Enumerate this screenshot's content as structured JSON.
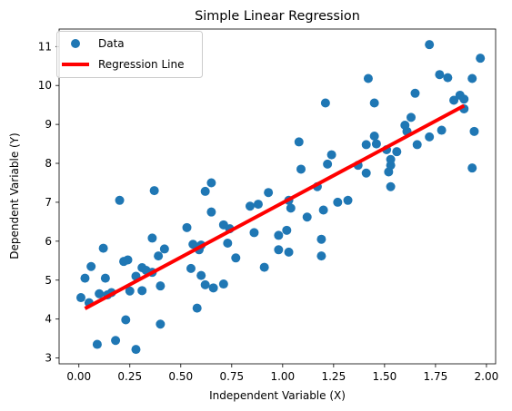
{
  "chart_data": {
    "type": "scatter",
    "title": "Simple Linear Regression",
    "xlabel": "Independent Variable (X)",
    "ylabel": "Dependent Variable (Y)",
    "xlim": [
      -0.097,
      2.045
    ],
    "ylim": [
      2.85,
      11.45
    ],
    "xticks": [
      "0.00",
      "0.25",
      "0.50",
      "0.75",
      "1.00",
      "1.25",
      "1.50",
      "1.75",
      "2.00"
    ],
    "yticks": [
      "3",
      "4",
      "5",
      "6",
      "7",
      "8",
      "9",
      "10",
      "11"
    ],
    "grid": false,
    "legend_position": "top-left",
    "colors": {
      "data": "#1f77b4",
      "line": "#ff0000"
    },
    "series": [
      {
        "name": "Data",
        "kind": "scatter",
        "points": [
          [
            0.01,
            4.55
          ],
          [
            0.03,
            5.05
          ],
          [
            0.05,
            4.42
          ],
          [
            0.06,
            5.35
          ],
          [
            0.09,
            3.35
          ],
          [
            0.1,
            4.65
          ],
          [
            0.12,
            5.82
          ],
          [
            0.13,
            5.05
          ],
          [
            0.14,
            4.62
          ],
          [
            0.16,
            4.68
          ],
          [
            0.18,
            3.45
          ],
          [
            0.2,
            7.05
          ],
          [
            0.22,
            5.48
          ],
          [
            0.23,
            3.98
          ],
          [
            0.24,
            5.52
          ],
          [
            0.25,
            4.72
          ],
          [
            0.28,
            5.1
          ],
          [
            0.28,
            3.22
          ],
          [
            0.31,
            4.73
          ],
          [
            0.31,
            5.32
          ],
          [
            0.33,
            5.25
          ],
          [
            0.36,
            5.2
          ],
          [
            0.36,
            6.08
          ],
          [
            0.37,
            7.3
          ],
          [
            0.39,
            5.62
          ],
          [
            0.4,
            4.85
          ],
          [
            0.4,
            3.87
          ],
          [
            0.42,
            5.8
          ],
          [
            0.53,
            6.35
          ],
          [
            0.55,
            5.3
          ],
          [
            0.56,
            5.92
          ],
          [
            0.58,
            4.28
          ],
          [
            0.59,
            5.78
          ],
          [
            0.6,
            5.12
          ],
          [
            0.6,
            5.9
          ],
          [
            0.62,
            7.28
          ],
          [
            0.62,
            4.88
          ],
          [
            0.65,
            6.75
          ],
          [
            0.65,
            7.5
          ],
          [
            0.66,
            4.8
          ],
          [
            0.71,
            4.9
          ],
          [
            0.71,
            6.42
          ],
          [
            0.73,
            5.95
          ],
          [
            0.74,
            6.32
          ],
          [
            0.77,
            5.57
          ],
          [
            0.84,
            6.9
          ],
          [
            0.86,
            6.22
          ],
          [
            0.88,
            6.95
          ],
          [
            0.91,
            5.33
          ],
          [
            0.93,
            7.25
          ],
          [
            0.98,
            5.78
          ],
          [
            0.98,
            6.15
          ],
          [
            1.02,
            6.28
          ],
          [
            1.03,
            5.72
          ],
          [
            1.03,
            7.05
          ],
          [
            1.04,
            6.85
          ],
          [
            1.08,
            8.55
          ],
          [
            1.09,
            7.85
          ],
          [
            1.12,
            6.62
          ],
          [
            1.17,
            7.4
          ],
          [
            1.19,
            5.62
          ],
          [
            1.19,
            6.05
          ],
          [
            1.2,
            6.8
          ],
          [
            1.21,
            9.55
          ],
          [
            1.22,
            7.98
          ],
          [
            1.24,
            8.22
          ],
          [
            1.27,
            7.0
          ],
          [
            1.32,
            7.05
          ],
          [
            1.37,
            7.95
          ],
          [
            1.41,
            8.48
          ],
          [
            1.41,
            7.75
          ],
          [
            1.42,
            10.18
          ],
          [
            1.45,
            9.55
          ],
          [
            1.45,
            8.7
          ],
          [
            1.46,
            8.5
          ],
          [
            1.51,
            8.35
          ],
          [
            1.52,
            7.78
          ],
          [
            1.53,
            7.95
          ],
          [
            1.53,
            8.1
          ],
          [
            1.53,
            7.4
          ],
          [
            1.56,
            8.3
          ],
          [
            1.6,
            8.98
          ],
          [
            1.61,
            8.82
          ],
          [
            1.63,
            9.18
          ],
          [
            1.65,
            9.8
          ],
          [
            1.66,
            8.48
          ],
          [
            1.72,
            8.68
          ],
          [
            1.72,
            11.05
          ],
          [
            1.77,
            10.28
          ],
          [
            1.78,
            8.85
          ],
          [
            1.81,
            10.2
          ],
          [
            1.84,
            9.62
          ],
          [
            1.87,
            9.75
          ],
          [
            1.89,
            9.4
          ],
          [
            1.89,
            9.65
          ],
          [
            1.93,
            7.88
          ],
          [
            1.93,
            10.18
          ],
          [
            1.94,
            8.82
          ],
          [
            1.97,
            10.7
          ]
        ]
      },
      {
        "name": "Regression Line",
        "kind": "line",
        "points": [
          [
            0.03,
            4.27
          ],
          [
            1.89,
            9.48
          ]
        ]
      }
    ]
  }
}
